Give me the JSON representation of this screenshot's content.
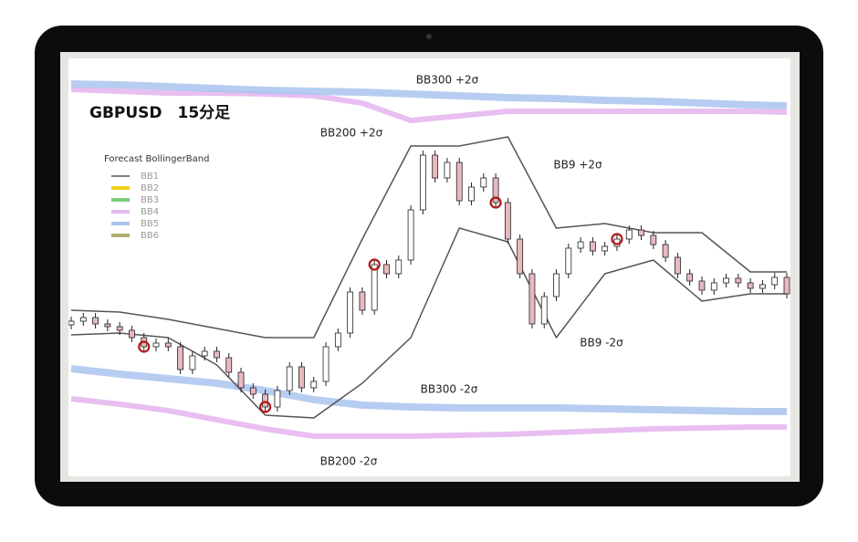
{
  "chart_data": {
    "type": "candlestick",
    "title": "GBPUSD　15分足",
    "legend_title": "Forecast BollingerBand",
    "xlim": [
      0,
      59
    ],
    "ylim": [
      0,
      470
    ],
    "candles": {
      "open": [
        172,
        176,
        180,
        173,
        170,
        166,
        158,
        148,
        152,
        148,
        123,
        138,
        143,
        136,
        120,
        103,
        96,
        82,
        100,
        126,
        103,
        110,
        148,
        163,
        208,
        188,
        238,
        228,
        243,
        298,
        358,
        333,
        350,
        308,
        323,
        333,
        306,
        266,
        228,
        173,
        203,
        228,
        256,
        263,
        253,
        258,
        266,
        276,
        270,
        260,
        246,
        228,
        220,
        210,
        218,
        223,
        218,
        212,
        216,
        224
      ],
      "high": [
        181,
        185,
        185,
        178,
        175,
        171,
        163,
        157,
        157,
        153,
        143,
        148,
        148,
        141,
        125,
        108,
        101,
        105,
        131,
        131,
        115,
        153,
        168,
        213,
        213,
        243,
        243,
        248,
        303,
        363,
        363,
        355,
        355,
        328,
        338,
        338,
        311,
        271,
        233,
        208,
        233,
        261,
        268,
        268,
        263,
        271,
        281,
        281,
        275,
        265,
        251,
        233,
        225,
        223,
        228,
        228,
        223,
        221,
        229,
        229
      ],
      "low": [
        167,
        171,
        168,
        165,
        161,
        153,
        143,
        143,
        143,
        118,
        118,
        133,
        131,
        115,
        98,
        91,
        77,
        77,
        95,
        98,
        98,
        105,
        143,
        158,
        183,
        183,
        223,
        223,
        238,
        293,
        328,
        328,
        303,
        303,
        318,
        301,
        261,
        223,
        168,
        168,
        198,
        223,
        251,
        248,
        248,
        253,
        261,
        265,
        255,
        241,
        223,
        215,
        205,
        205,
        213,
        213,
        207,
        207,
        211,
        201
      ],
      "close": [
        176,
        180,
        173,
        170,
        166,
        158,
        148,
        152,
        148,
        123,
        138,
        143,
        136,
        120,
        103,
        96,
        82,
        100,
        126,
        103,
        110,
        148,
        163,
        208,
        188,
        238,
        228,
        243,
        298,
        358,
        333,
        350,
        308,
        323,
        333,
        306,
        266,
        228,
        173,
        203,
        228,
        256,
        263,
        253,
        258,
        266,
        276,
        270,
        260,
        246,
        228,
        220,
        210,
        218,
        223,
        218,
        212,
        216,
        224,
        206
      ]
    },
    "signals": [
      6,
      16,
      25,
      35,
      45
    ],
    "band_x": [
      0,
      4,
      8,
      12,
      16,
      20,
      24,
      28,
      32,
      36,
      40,
      44,
      48,
      52,
      56,
      59
    ],
    "series": [
      {
        "name": "BB1",
        "color": "#555555",
        "upper": [
          188,
          186,
          178,
          168,
          158,
          158,
          266,
          368,
          368,
          378,
          278,
          283,
          273,
          273,
          230,
          230
        ],
        "lower": [
          161,
          163,
          158,
          128,
          73,
          70,
          108,
          158,
          278,
          263,
          158,
          228,
          243,
          198,
          206,
          206
        ]
      },
      {
        "name": "BB2",
        "color": "#f2d21a"
      },
      {
        "name": "BB3",
        "color": "#7ccc7c"
      },
      {
        "name": "BB4",
        "color": "#e6b8ee",
        "upper": [
          430,
          428,
          426,
          426,
          425,
          423,
          415,
          396,
          401,
          406,
          406,
          406,
          406,
          406,
          406,
          405
        ],
        "lower": [
          91,
          85,
          78,
          68,
          58,
          50,
          50,
          50,
          51,
          52,
          54,
          56,
          58,
          59,
          60,
          60
        ]
      },
      {
        "name": "BB5",
        "color": "#a9c4ee",
        "upper": [
          436,
          435,
          433,
          431,
          429,
          428,
          427,
          425,
          423,
          421,
          420,
          418,
          417,
          415,
          413,
          412
        ],
        "lower": [
          124,
          118,
          113,
          108,
          100,
          90,
          84,
          82,
          81,
          81,
          81,
          80,
          79,
          78,
          77,
          77
        ]
      },
      {
        "name": "BB6",
        "color": "#b0ad72"
      }
    ],
    "annotations": [
      "BB300 +2σ",
      "BB200 +2σ",
      "BB9 +2σ",
      "BB9 -2σ",
      "BB300 -2σ",
      "BB200 -2σ"
    ]
  }
}
